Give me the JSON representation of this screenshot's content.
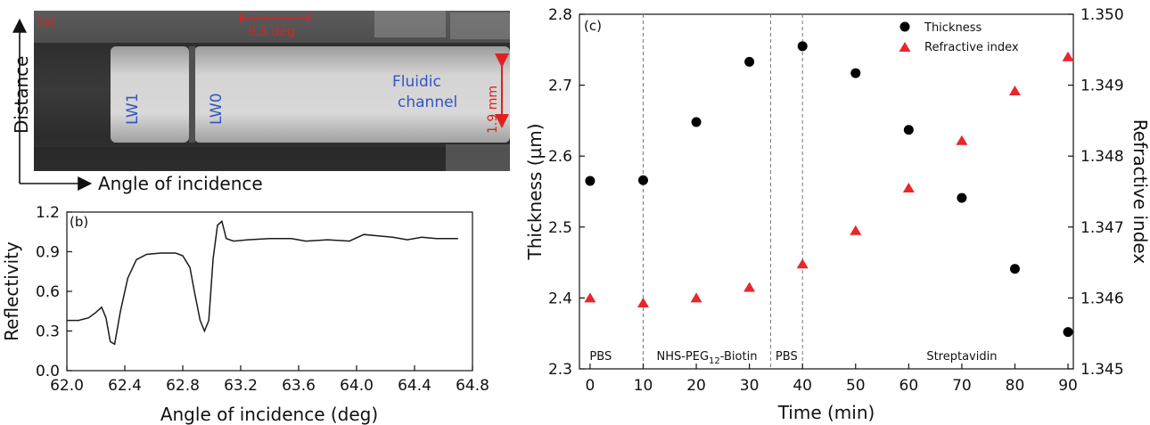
{
  "panel_a": {
    "label": "(a)",
    "scale_label": "0.5 deg",
    "height_label": "1.9 mm",
    "lw1_label": "LW1",
    "lw0_label": "LW0",
    "fluidic_line1": "Fluidic",
    "fluidic_line2": "channel",
    "y_axis_label": "Distance",
    "x_axis_label": "Angle of incidence",
    "colors": {
      "labels": "#3355c0",
      "annotations": "#e02020"
    }
  },
  "chart_data": [
    {
      "type": "line",
      "panel": "(b)",
      "xlabel": "Angle of incidence (deg)",
      "ylabel": "Reflectivity",
      "xlim": [
        62.0,
        64.8
      ],
      "ylim": [
        0.0,
        1.2
      ],
      "x_ticks": [
        "62.0",
        "62.4",
        "62.8",
        "63.2",
        "63.6",
        "64.0",
        "64.4",
        "64.8"
      ],
      "y_ticks": [
        "0.0",
        "0.3",
        "0.6",
        "0.9",
        "1.2"
      ],
      "grid": false,
      "color": "#1a1a1a",
      "series": [
        {
          "x": [
            62.0,
            62.08,
            62.15,
            62.2,
            62.24,
            62.27,
            62.3,
            62.33,
            62.37,
            62.42,
            62.48,
            62.55,
            62.65,
            62.75,
            62.8,
            62.85,
            62.88,
            62.92,
            62.95,
            62.98,
            63.01,
            63.04,
            63.07,
            63.1,
            63.15,
            63.25,
            63.4,
            63.55,
            63.65,
            63.8,
            63.95,
            64.05,
            64.15,
            64.25,
            64.35,
            64.45,
            64.55,
            64.7
          ],
          "y": [
            0.38,
            0.38,
            0.4,
            0.44,
            0.48,
            0.4,
            0.22,
            0.2,
            0.45,
            0.7,
            0.84,
            0.88,
            0.89,
            0.89,
            0.87,
            0.78,
            0.6,
            0.38,
            0.3,
            0.38,
            0.85,
            1.1,
            1.13,
            1.0,
            0.98,
            0.99,
            1.0,
            1.0,
            0.98,
            0.99,
            0.98,
            1.03,
            1.02,
            1.01,
            0.99,
            1.01,
            1.0,
            1.0
          ]
        }
      ]
    },
    {
      "type": "scatter",
      "panel": "(c)",
      "xlabel": "Time (min)",
      "ylabel": "Thickness (µm)",
      "y2label": "Refractive index",
      "xlim": [
        -2,
        91
      ],
      "ylim": [
        2.3,
        2.8
      ],
      "y2lim": [
        1.345,
        1.35
      ],
      "x_ticks": [
        "0",
        "10",
        "20",
        "30",
        "40",
        "50",
        "60",
        "70",
        "80",
        "90"
      ],
      "y_ticks": [
        "2.3",
        "2.4",
        "2.5",
        "2.6",
        "2.7",
        "2.8"
      ],
      "y2_ticks": [
        "1.345",
        "1.346",
        "1.347",
        "1.348",
        "1.349",
        "1.350"
      ],
      "legend_position": "top-right",
      "vlines": [
        10,
        34,
        40
      ],
      "phases": [
        {
          "text": "PBS",
          "x": 2
        },
        {
          "text": "NHS-PEG",
          "sub": "12",
          "suffix": "-Biotin",
          "x": 22
        },
        {
          "text": "PBS",
          "x": 37
        },
        {
          "text": "Streptavidin",
          "x": 70
        }
      ],
      "series": [
        {
          "name": "Thickness",
          "marker": "circle",
          "color": "#000000",
          "axis": "left",
          "x": [
            0,
            10,
            20,
            30,
            40,
            50,
            60,
            70,
            80,
            90
          ],
          "y": [
            2.565,
            2.566,
            2.648,
            2.733,
            2.755,
            2.717,
            2.637,
            2.541,
            2.441,
            2.352
          ]
        },
        {
          "name": "Refractive index",
          "marker": "triangle",
          "color": "#e8262b",
          "axis": "right",
          "x": [
            0,
            10,
            20,
            30,
            40,
            50,
            60,
            70,
            80,
            90
          ],
          "y": [
            1.346,
            1.34593,
            1.346,
            1.34615,
            1.34648,
            1.34695,
            1.34755,
            1.34822,
            1.34892,
            1.3494
          ]
        }
      ]
    }
  ]
}
